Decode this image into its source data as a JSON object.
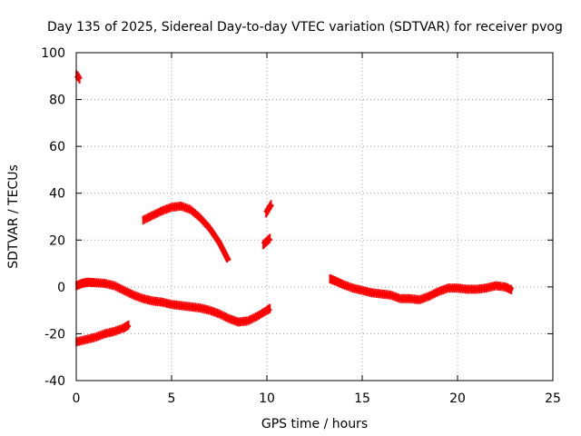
{
  "chart_data": {
    "type": "scatter",
    "title": "Day 135 of 2025, Sidereal Day-to-day VTEC variation (SDTVAR) for receiver pvog",
    "xlabel": "GPS time / hours",
    "ylabel": "SDTVAR / TECUs",
    "xlim": [
      0,
      25
    ],
    "ylim": [
      -40,
      100
    ],
    "xticks": [
      0,
      5,
      10,
      15,
      20,
      25
    ],
    "yticks": [
      -40,
      -20,
      0,
      20,
      40,
      60,
      80,
      100
    ],
    "xtick_labels": [
      "0",
      "5",
      "10",
      "15",
      "20",
      "25"
    ],
    "ytick_labels": [
      "-40",
      "-20",
      "0",
      "20",
      "40",
      "60",
      "80",
      "100"
    ],
    "grid": true,
    "series_color": "#ff0000",
    "series": [
      {
        "name": "arc-high-start",
        "x": [
          0.0,
          0.1,
          0.2
        ],
        "y": [
          90.5,
          89.8,
          88.5
        ]
      },
      {
        "name": "arc-main-1",
        "x": [
          0.0,
          0.3,
          0.6,
          1.0,
          1.5,
          2.0,
          2.5,
          3.0,
          3.5,
          4.0,
          4.5,
          5.0,
          5.5,
          6.0,
          6.5,
          7.0,
          7.5,
          8.0,
          8.5,
          9.0,
          9.5,
          10.0,
          10.2
        ],
        "y": [
          0.5,
          1.5,
          2.0,
          1.8,
          1.5,
          0.5,
          -1.5,
          -3.5,
          -5.0,
          -6.0,
          -6.5,
          -7.5,
          -8.0,
          -8.5,
          -9.0,
          -10.0,
          -11.5,
          -13.5,
          -15.0,
          -14.5,
          -12.5,
          -10.0,
          -9.0
        ]
      },
      {
        "name": "arc-low",
        "x": [
          0.0,
          0.5,
          1.0,
          1.5,
          2.0,
          2.5,
          2.8
        ],
        "y": [
          -23.5,
          -22.5,
          -21.5,
          -20.0,
          -19.0,
          -17.5,
          -16.0
        ]
      },
      {
        "name": "arc-hump",
        "x": [
          3.5,
          4.0,
          4.5,
          5.0,
          5.5,
          6.0,
          6.5,
          7.0,
          7.5,
          8.0
        ],
        "y": [
          28.5,
          30.5,
          32.5,
          34.0,
          34.5,
          33.0,
          29.5,
          25.0,
          19.0,
          11.0
        ]
      },
      {
        "name": "arc-short-1",
        "x": [
          9.8,
          10.0,
          10.2
        ],
        "y": [
          18.0,
          19.5,
          21.0
        ]
      },
      {
        "name": "arc-short-2",
        "x": [
          9.95,
          10.1,
          10.25
        ],
        "y": [
          31.5,
          33.5,
          35.5
        ]
      },
      {
        "name": "arc-main-2",
        "x": [
          13.3,
          13.6,
          14.0,
          14.5,
          15.0,
          15.5,
          16.0,
          16.5,
          17.0,
          17.5,
          18.0,
          18.5,
          19.0,
          19.5,
          20.0,
          20.5,
          21.0,
          21.5,
          22.0,
          22.5,
          22.9
        ],
        "y": [
          3.5,
          2.5,
          1.0,
          -0.5,
          -1.5,
          -2.5,
          -3.0,
          -3.5,
          -5.0,
          -5.0,
          -5.5,
          -4.0,
          -2.0,
          -0.5,
          -0.5,
          -1.0,
          -1.0,
          -0.5,
          0.5,
          0.0,
          -1.5
        ]
      }
    ]
  }
}
